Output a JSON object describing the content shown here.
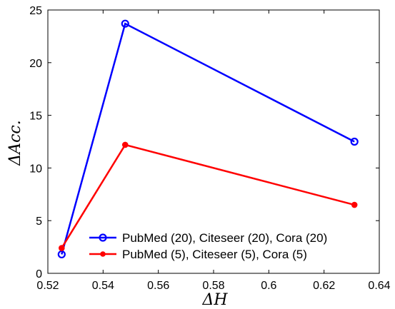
{
  "chart_data": {
    "type": "line",
    "xlabel": "ΔH",
    "ylabel": "ΔAcc.",
    "xlim": [
      0.52,
      0.64
    ],
    "ylim": [
      0,
      25
    ],
    "xticks": [
      "0.52",
      "0.54",
      "0.56",
      "0.58",
      "0.6",
      "0.62",
      "0.64"
    ],
    "yticks": [
      "0",
      "5",
      "10",
      "15",
      "20",
      "25"
    ],
    "grid": false,
    "legend_position": "bottom-left",
    "series": [
      {
        "name": "PubMed (20), Citeseer (20), Cora (20)",
        "color": "#0000ff",
        "marker": "open-circle",
        "x": [
          0.525,
          0.548,
          0.631
        ],
        "y": [
          1.8,
          23.7,
          12.5
        ]
      },
      {
        "name": "PubMed (5), Citeseer (5), Cora (5)",
        "color": "#ff0000",
        "marker": "filled-dot",
        "x": [
          0.525,
          0.548,
          0.631
        ],
        "y": [
          2.4,
          12.2,
          6.5
        ]
      }
    ]
  }
}
